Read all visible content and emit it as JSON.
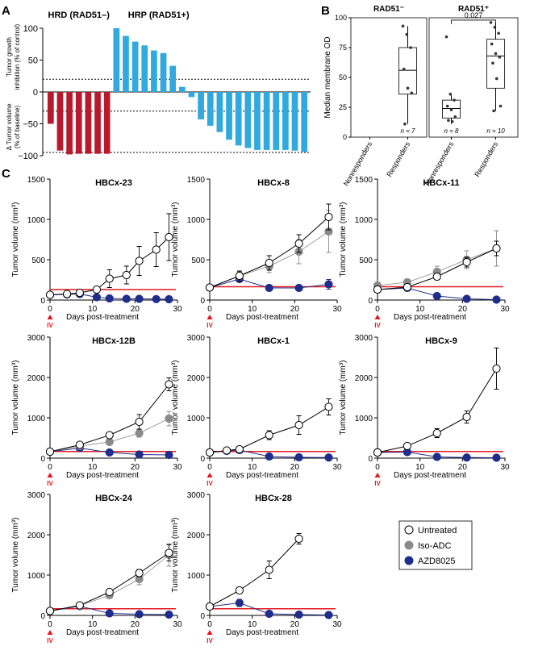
{
  "panel_labels": {
    "a": "A",
    "b": "B",
    "c": "C"
  },
  "colors": {
    "hrd_bar": "#b8192d",
    "hrp_bar": "#2fa9df",
    "untreated": "#ffffff",
    "iso": "#8a8a8a",
    "azd": "#1f2d8c",
    "threshold": "#e3181f",
    "iv_marker": "#e3181f",
    "axis": "#000000"
  },
  "legend": [
    {
      "key": "untreated",
      "label": "Untreated"
    },
    {
      "key": "iso",
      "label": "Iso-ADC"
    },
    {
      "key": "azd",
      "label": "AZD8025"
    }
  ],
  "iv_label": "IV",
  "chart_data": [
    {
      "id": "A",
      "type": "bar",
      "title_left": "HRD (RAD51–)",
      "title_right": "HRP  (RAD51+)",
      "ylabel_top": [
        "Tumor growth",
        "inhibition (% of control)"
      ],
      "ylabel_bottom": [
        "Δ Tumor volume",
        "(% of baseline)"
      ],
      "ylim": [
        -100,
        100
      ],
      "yticks": [
        -100,
        -50,
        0,
        50,
        100
      ],
      "tick_labels": [
        "−100",
        "−50",
        "0",
        "50",
        "100"
      ],
      "reference_lines": [
        20,
        -30,
        -95
      ],
      "groups": [
        {
          "name": "HRD (RAD51–)",
          "values": [
            -50,
            -92,
            -98,
            -97,
            -97,
            -97,
            -97
          ]
        },
        {
          "name": "HRP (RAD51+)",
          "values": [
            100,
            88,
            79,
            73,
            65,
            61,
            41,
            8,
            -8,
            -43,
            -53,
            -63,
            -75,
            -84,
            -88,
            -91,
            -91,
            -91,
            -91,
            -92,
            -94
          ]
        }
      ]
    },
    {
      "id": "B",
      "type": "box",
      "ylabel": "Median membrane OD",
      "ylim": [
        0,
        100
      ],
      "yticks": [
        0,
        25,
        50,
        75,
        100
      ],
      "facets": [
        {
          "title": "RAD51⁻",
          "groups": [
            {
              "name": "Nonresponders",
              "n_label": "",
              "points": []
            },
            {
              "name": "Responders",
              "n_label": "n = 7",
              "q1": 36,
              "median": 56,
              "q3": 75,
              "whisker_low": 11,
              "whisker_high": 93,
              "points": [
                93,
                86,
                75,
                57,
                41,
                37,
                11
              ]
            }
          ]
        },
        {
          "title": "RAD51⁺",
          "p_value": "0.027",
          "groups": [
            {
              "name": "Nonresponders",
              "n_label": "n = 8",
              "q1": 16,
              "median": 24,
              "q3": 31,
              "whisker_low": 11,
              "whisker_high": 35,
              "points": [
                84,
                36,
                31,
                26,
                23,
                17,
                14,
                13
              ]
            },
            {
              "name": "Responders",
              "n_label": "n = 10",
              "q1": 41,
              "median": 68,
              "q3": 82,
              "whisker_low": 22,
              "whisker_high": 96,
              "points": [
                96,
                92,
                87,
                78,
                70,
                67,
                62,
                49,
                26,
                22
              ]
            }
          ]
        }
      ]
    },
    {
      "id": "C",
      "type": "line",
      "xlabel": "Days post-treatment",
      "ylabel": "Tumor volume (mm³)",
      "xlim": [
        0,
        30
      ],
      "xticks": [
        0,
        10,
        20,
        30
      ],
      "subplots": [
        {
          "title": "HBCx-23",
          "ylim": [
            0,
            1500
          ],
          "yticks": [
            0,
            500,
            1000,
            1500
          ],
          "threshold": 130,
          "series": [
            {
              "name": "Untreated",
              "key": "untreated",
              "x": [
                0,
                4,
                7,
                11,
                14,
                18,
                21,
                25,
                28
              ],
              "y": [
                65,
                75,
                90,
                130,
                265,
                310,
                485,
                625,
                780
              ],
              "err": [
                10,
                15,
                20,
                30,
                110,
                110,
                180,
                210,
                290
              ]
            },
            {
              "name": "Iso-ADC",
              "key": "iso",
              "x": [],
              "y": [],
              "err": []
            },
            {
              "name": "AZD8025",
              "key": "azd",
              "x": [
                0,
                4,
                7,
                11,
                14,
                18,
                21,
                25,
                28
              ],
              "y": [
                65,
                70,
                75,
                35,
                20,
                15,
                15,
                12,
                10
              ],
              "err": [
                10,
                10,
                40,
                15,
                10,
                8,
                8,
                5,
                5
              ]
            }
          ]
        },
        {
          "title": "HBCx-8",
          "ylim": [
            0,
            1500
          ],
          "yticks": [
            0,
            500,
            1000,
            1500
          ],
          "threshold": 165,
          "series": [
            {
              "name": "Untreated",
              "key": "untreated",
              "x": [
                0,
                7,
                14,
                21,
                28
              ],
              "y": [
                155,
                300,
                460,
                700,
                1030
              ],
              "err": [
                15,
                60,
                90,
                110,
                160
              ]
            },
            {
              "name": "Iso-ADC",
              "key": "iso",
              "x": [
                0,
                7,
                14,
                21,
                28
              ],
              "y": [
                155,
                300,
                420,
                600,
                850
              ],
              "err": [
                15,
                50,
                80,
                150,
                260
              ]
            },
            {
              "name": "AZD8025",
              "key": "azd",
              "x": [
                0,
                7,
                14,
                21,
                28
              ],
              "y": [
                155,
                260,
                150,
                150,
                195
              ],
              "err": [
                15,
                20,
                15,
                15,
                60
              ]
            }
          ]
        },
        {
          "title": "HBCx-11",
          "ylim": [
            0,
            1500
          ],
          "yticks": [
            0,
            500,
            1000,
            1500
          ],
          "threshold": 165,
          "series": [
            {
              "name": "Untreated",
              "key": "untreated",
              "x": [
                0,
                7,
                14,
                21,
                28
              ],
              "y": [
                130,
                160,
                290,
                470,
                640
              ],
              "err": [
                15,
                20,
                40,
                60,
                90
              ]
            },
            {
              "name": "Iso-ADC",
              "key": "iso",
              "x": [
                0,
                7,
                14,
                21,
                28
              ],
              "y": [
                180,
                220,
                350,
                500,
                640
              ],
              "err": [
                20,
                40,
                70,
                110,
                220
              ]
            },
            {
              "name": "AZD8025",
              "key": "azd",
              "x": [
                0,
                7,
                14,
                21,
                28
              ],
              "y": [
                130,
                150,
                50,
                15,
                5
              ],
              "err": [
                15,
                20,
                15,
                5,
                5
              ]
            }
          ]
        },
        {
          "title": "HBCx-12B",
          "ylim": [
            0,
            3000
          ],
          "yticks": [
            0,
            1000,
            2000,
            3000
          ],
          "threshold": 165,
          "series": [
            {
              "name": "Untreated",
              "key": "untreated",
              "x": [
                0,
                7,
                14,
                21,
                28
              ],
              "y": [
                160,
                330,
                570,
                900,
                1830
              ],
              "err": [
                20,
                40,
                60,
                180,
                160
              ]
            },
            {
              "name": "Iso-ADC",
              "key": "iso",
              "x": [
                0,
                7,
                14,
                21,
                28
              ],
              "y": [
                160,
                300,
                400,
                620,
                980
              ],
              "err": [
                20,
                40,
                60,
                100,
                180
              ]
            },
            {
              "name": "AZD8025",
              "key": "azd",
              "x": [
                0,
                7,
                14,
                21,
                28
              ],
              "y": [
                160,
                250,
                140,
                90,
                80
              ],
              "err": [
                20,
                30,
                20,
                10,
                10
              ]
            }
          ]
        },
        {
          "title": "HBCx-1",
          "ylim": [
            0,
            3000
          ],
          "yticks": [
            0,
            1000,
            2000,
            3000
          ],
          "threshold": 165,
          "series": [
            {
              "name": "Untreated",
              "key": "untreated",
              "x": [
                0,
                4,
                7,
                14,
                21,
                28
              ],
              "y": [
                140,
                190,
                220,
                570,
                820,
                1270
              ],
              "err": [
                15,
                30,
                40,
                110,
                230,
                200
              ]
            },
            {
              "name": "Iso-ADC",
              "key": "iso",
              "x": [],
              "y": [],
              "err": []
            },
            {
              "name": "AZD8025",
              "key": "azd",
              "x": [
                0,
                4,
                7,
                14,
                21,
                28
              ],
              "y": [
                140,
                180,
                200,
                40,
                20,
                15
              ],
              "err": [
                15,
                20,
                30,
                10,
                5,
                5
              ]
            }
          ]
        },
        {
          "title": "HBCx-9",
          "ylim": [
            0,
            3000
          ],
          "yticks": [
            0,
            1000,
            2000,
            3000
          ],
          "threshold": 165,
          "series": [
            {
              "name": "Untreated",
              "key": "untreated",
              "x": [
                0,
                7,
                14,
                21,
                28
              ],
              "y": [
                140,
                300,
                620,
                1020,
                2220
              ],
              "err": [
                15,
                40,
                110,
                150,
                510
              ]
            },
            {
              "name": "Iso-ADC",
              "key": "iso",
              "x": [],
              "y": [],
              "err": []
            },
            {
              "name": "AZD8025",
              "key": "azd",
              "x": [
                0,
                7,
                14,
                21,
                28
              ],
              "y": [
                140,
                150,
                30,
                15,
                10
              ],
              "err": [
                15,
                20,
                10,
                5,
                5
              ]
            }
          ]
        },
        {
          "title": "HBCx-24",
          "ylim": [
            0,
            3000
          ],
          "yticks": [
            0,
            1000,
            2000,
            3000
          ],
          "threshold": 165,
          "series": [
            {
              "name": "Untreated",
              "key": "untreated",
              "x": [
                0,
                7,
                14,
                21,
                28
              ],
              "y": [
                110,
                250,
                580,
                1050,
                1550
              ],
              "err": [
                15,
                40,
                60,
                90,
                200
              ]
            },
            {
              "name": "Iso-ADC",
              "key": "iso",
              "x": [
                0,
                7,
                14,
                21,
                28
              ],
              "y": [
                110,
                240,
                500,
                900,
                1500
              ],
              "err": [
                15,
                40,
                70,
                140,
                280
              ]
            },
            {
              "name": "AZD8025",
              "key": "azd",
              "x": [
                0,
                7,
                14,
                21,
                28
              ],
              "y": [
                110,
                230,
                50,
                30,
                20
              ],
              "err": [
                15,
                30,
                10,
                10,
                5
              ]
            }
          ]
        },
        {
          "title": "HBCx-28",
          "ylim": [
            0,
            3000
          ],
          "yticks": [
            0,
            1000,
            2000,
            3000
          ],
          "threshold": 165,
          "series": [
            {
              "name": "Untreated",
              "key": "untreated",
              "x": [
                0,
                7,
                14,
                21
              ],
              "y": [
                220,
                620,
                1130,
                1900
              ],
              "err": [
                20,
                50,
                220,
                130
              ]
            },
            {
              "name": "Iso-ADC",
              "key": "iso",
              "x": [],
              "y": [],
              "err": []
            },
            {
              "name": "AZD8025",
              "key": "azd",
              "x": [
                0,
                7,
                14,
                21,
                28
              ],
              "y": [
                220,
                310,
                40,
                20,
                10
              ],
              "err": [
                20,
                90,
                10,
                5,
                5
              ]
            }
          ]
        }
      ]
    }
  ]
}
